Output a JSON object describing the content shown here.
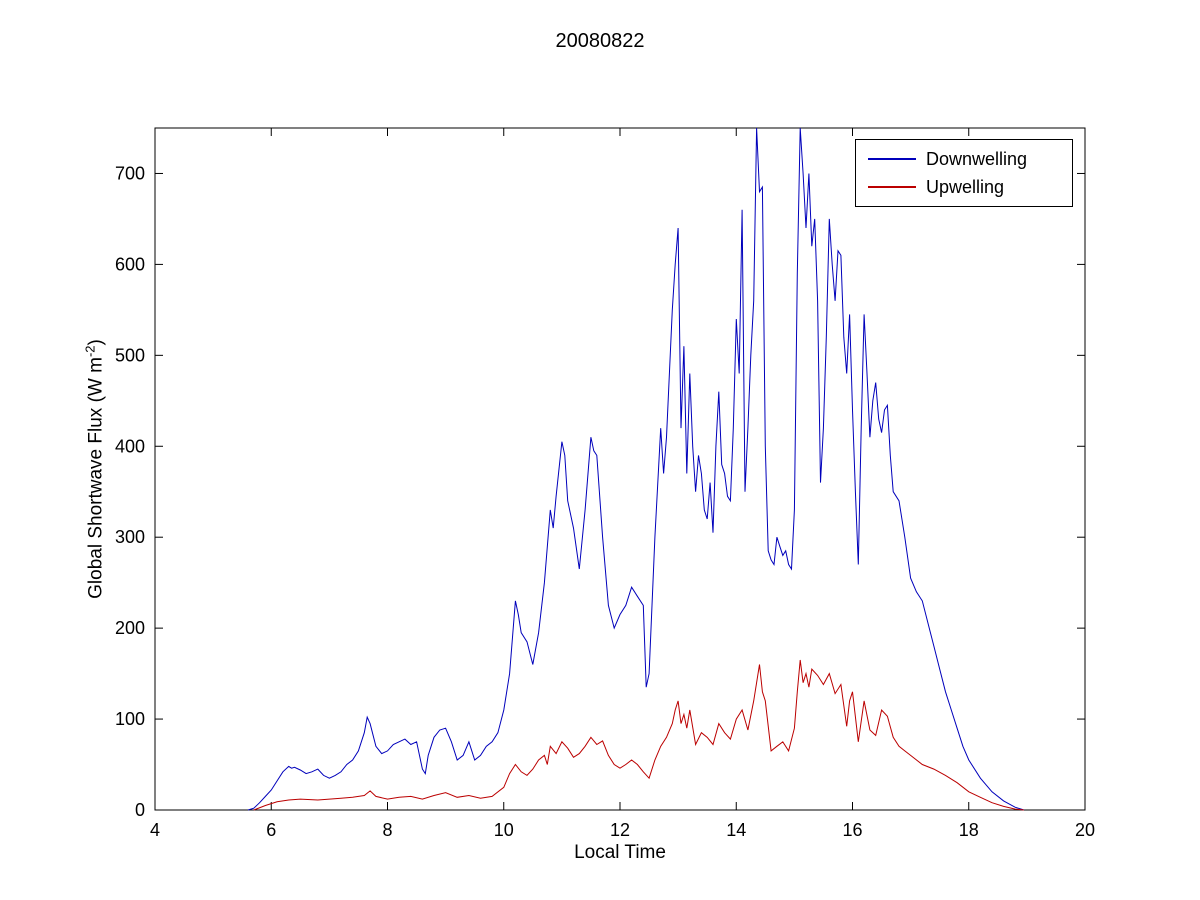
{
  "chart_data": {
    "type": "line",
    "title": "20080822",
    "xlabel": "Local Time",
    "ylabel": {
      "text": "Global Shortwave Flux (W m",
      "sup": "-2",
      "end": ")"
    },
    "xlim": [
      4,
      20
    ],
    "ylim": [
      0,
      750
    ],
    "xticks": [
      4,
      6,
      8,
      10,
      12,
      14,
      16,
      18,
      20
    ],
    "yticks": [
      0,
      100,
      200,
      300,
      400,
      500,
      600,
      700
    ],
    "grid": false,
    "legend_position": "top-right",
    "axis_color": "#000000",
    "background_color": "#ffffff",
    "series": [
      {
        "name": "Downwelling",
        "color": "#0000bb",
        "points": [
          [
            5.6,
            0
          ],
          [
            5.7,
            2
          ],
          [
            5.8,
            8
          ],
          [
            5.9,
            15
          ],
          [
            6.0,
            22
          ],
          [
            6.1,
            32
          ],
          [
            6.2,
            42
          ],
          [
            6.3,
            48
          ],
          [
            6.35,
            46
          ],
          [
            6.4,
            47
          ],
          [
            6.5,
            44
          ],
          [
            6.6,
            40
          ],
          [
            6.7,
            42
          ],
          [
            6.8,
            45
          ],
          [
            6.9,
            38
          ],
          [
            7.0,
            35
          ],
          [
            7.1,
            38
          ],
          [
            7.2,
            42
          ],
          [
            7.3,
            50
          ],
          [
            7.4,
            55
          ],
          [
            7.5,
            65
          ],
          [
            7.6,
            85
          ],
          [
            7.65,
            102
          ],
          [
            7.7,
            95
          ],
          [
            7.8,
            70
          ],
          [
            7.9,
            62
          ],
          [
            8.0,
            65
          ],
          [
            8.1,
            72
          ],
          [
            8.2,
            75
          ],
          [
            8.3,
            78
          ],
          [
            8.4,
            72
          ],
          [
            8.5,
            75
          ],
          [
            8.6,
            45
          ],
          [
            8.65,
            40
          ],
          [
            8.7,
            60
          ],
          [
            8.8,
            80
          ],
          [
            8.9,
            88
          ],
          [
            9.0,
            90
          ],
          [
            9.1,
            75
          ],
          [
            9.2,
            55
          ],
          [
            9.3,
            60
          ],
          [
            9.4,
            75
          ],
          [
            9.5,
            55
          ],
          [
            9.6,
            60
          ],
          [
            9.7,
            70
          ],
          [
            9.8,
            75
          ],
          [
            9.9,
            85
          ],
          [
            10.0,
            110
          ],
          [
            10.1,
            150
          ],
          [
            10.2,
            230
          ],
          [
            10.25,
            215
          ],
          [
            10.3,
            195
          ],
          [
            10.4,
            185
          ],
          [
            10.5,
            160
          ],
          [
            10.6,
            195
          ],
          [
            10.7,
            250
          ],
          [
            10.8,
            330
          ],
          [
            10.85,
            310
          ],
          [
            10.9,
            345
          ],
          [
            11.0,
            405
          ],
          [
            11.05,
            390
          ],
          [
            11.1,
            340
          ],
          [
            11.2,
            310
          ],
          [
            11.3,
            265
          ],
          [
            11.4,
            330
          ],
          [
            11.5,
            410
          ],
          [
            11.55,
            395
          ],
          [
            11.6,
            390
          ],
          [
            11.7,
            300
          ],
          [
            11.8,
            225
          ],
          [
            11.9,
            200
          ],
          [
            12.0,
            215
          ],
          [
            12.1,
            225
          ],
          [
            12.2,
            245
          ],
          [
            12.3,
            235
          ],
          [
            12.4,
            225
          ],
          [
            12.45,
            135
          ],
          [
            12.5,
            150
          ],
          [
            12.6,
            300
          ],
          [
            12.7,
            420
          ],
          [
            12.75,
            370
          ],
          [
            12.8,
            410
          ],
          [
            12.85,
            480
          ],
          [
            12.9,
            550
          ],
          [
            12.95,
            600
          ],
          [
            13.0,
            640
          ],
          [
            13.05,
            420
          ],
          [
            13.1,
            510
          ],
          [
            13.15,
            370
          ],
          [
            13.2,
            480
          ],
          [
            13.25,
            400
          ],
          [
            13.3,
            350
          ],
          [
            13.35,
            390
          ],
          [
            13.4,
            370
          ],
          [
            13.45,
            330
          ],
          [
            13.5,
            320
          ],
          [
            13.55,
            360
          ],
          [
            13.6,
            305
          ],
          [
            13.65,
            400
          ],
          [
            13.7,
            460
          ],
          [
            13.75,
            380
          ],
          [
            13.8,
            370
          ],
          [
            13.85,
            345
          ],
          [
            13.9,
            340
          ],
          [
            13.95,
            420
          ],
          [
            14.0,
            540
          ],
          [
            14.05,
            480
          ],
          [
            14.1,
            660
          ],
          [
            14.15,
            350
          ],
          [
            14.2,
            420
          ],
          [
            14.25,
            500
          ],
          [
            14.3,
            560
          ],
          [
            14.35,
            750
          ],
          [
            14.4,
            680
          ],
          [
            14.45,
            685
          ],
          [
            14.5,
            400
          ],
          [
            14.55,
            285
          ],
          [
            14.6,
            275
          ],
          [
            14.65,
            270
          ],
          [
            14.7,
            300
          ],
          [
            14.75,
            290
          ],
          [
            14.8,
            280
          ],
          [
            14.85,
            285
          ],
          [
            14.9,
            270
          ],
          [
            14.95,
            265
          ],
          [
            15.0,
            330
          ],
          [
            15.05,
            590
          ],
          [
            15.1,
            750
          ],
          [
            15.15,
            700
          ],
          [
            15.2,
            640
          ],
          [
            15.25,
            700
          ],
          [
            15.3,
            620
          ],
          [
            15.35,
            650
          ],
          [
            15.4,
            560
          ],
          [
            15.45,
            360
          ],
          [
            15.5,
            420
          ],
          [
            15.55,
            520
          ],
          [
            15.6,
            650
          ],
          [
            15.65,
            600
          ],
          [
            15.7,
            560
          ],
          [
            15.75,
            615
          ],
          [
            15.8,
            610
          ],
          [
            15.85,
            520
          ],
          [
            15.9,
            480
          ],
          [
            15.95,
            545
          ],
          [
            16.0,
            440
          ],
          [
            16.05,
            350
          ],
          [
            16.1,
            270
          ],
          [
            16.15,
            420
          ],
          [
            16.2,
            545
          ],
          [
            16.25,
            480
          ],
          [
            16.3,
            410
          ],
          [
            16.35,
            450
          ],
          [
            16.4,
            470
          ],
          [
            16.45,
            430
          ],
          [
            16.5,
            415
          ],
          [
            16.55,
            440
          ],
          [
            16.6,
            445
          ],
          [
            16.65,
            390
          ],
          [
            16.7,
            350
          ],
          [
            16.8,
            340
          ],
          [
            16.9,
            300
          ],
          [
            17.0,
            255
          ],
          [
            17.1,
            240
          ],
          [
            17.2,
            230
          ],
          [
            17.3,
            205
          ],
          [
            17.4,
            180
          ],
          [
            17.5,
            155
          ],
          [
            17.6,
            130
          ],
          [
            17.7,
            110
          ],
          [
            17.8,
            90
          ],
          [
            17.9,
            70
          ],
          [
            18.0,
            55
          ],
          [
            18.2,
            35
          ],
          [
            18.4,
            20
          ],
          [
            18.6,
            10
          ],
          [
            18.8,
            3
          ],
          [
            18.95,
            0
          ]
        ]
      },
      {
        "name": "Upwelling",
        "color": "#bb0000",
        "points": [
          [
            5.7,
            0
          ],
          [
            5.9,
            5
          ],
          [
            6.1,
            9
          ],
          [
            6.3,
            11
          ],
          [
            6.5,
            12
          ],
          [
            6.8,
            11
          ],
          [
            7.0,
            12
          ],
          [
            7.2,
            13
          ],
          [
            7.4,
            14
          ],
          [
            7.6,
            16
          ],
          [
            7.7,
            21
          ],
          [
            7.8,
            15
          ],
          [
            8.0,
            12
          ],
          [
            8.2,
            14
          ],
          [
            8.4,
            15
          ],
          [
            8.6,
            12
          ],
          [
            8.8,
            16
          ],
          [
            9.0,
            19
          ],
          [
            9.2,
            14
          ],
          [
            9.4,
            16
          ],
          [
            9.6,
            13
          ],
          [
            9.8,
            15
          ],
          [
            10.0,
            25
          ],
          [
            10.1,
            40
          ],
          [
            10.2,
            50
          ],
          [
            10.3,
            42
          ],
          [
            10.4,
            38
          ],
          [
            10.5,
            45
          ],
          [
            10.6,
            55
          ],
          [
            10.7,
            60
          ],
          [
            10.75,
            50
          ],
          [
            10.8,
            70
          ],
          [
            10.9,
            62
          ],
          [
            11.0,
            75
          ],
          [
            11.1,
            68
          ],
          [
            11.2,
            58
          ],
          [
            11.3,
            62
          ],
          [
            11.4,
            70
          ],
          [
            11.5,
            80
          ],
          [
            11.6,
            72
          ],
          [
            11.7,
            76
          ],
          [
            11.8,
            60
          ],
          [
            11.9,
            50
          ],
          [
            12.0,
            46
          ],
          [
            12.1,
            50
          ],
          [
            12.2,
            55
          ],
          [
            12.3,
            50
          ],
          [
            12.4,
            42
          ],
          [
            12.5,
            35
          ],
          [
            12.6,
            55
          ],
          [
            12.7,
            70
          ],
          [
            12.8,
            80
          ],
          [
            12.9,
            95
          ],
          [
            12.95,
            110
          ],
          [
            13.0,
            120
          ],
          [
            13.05,
            95
          ],
          [
            13.1,
            105
          ],
          [
            13.15,
            90
          ],
          [
            13.2,
            110
          ],
          [
            13.3,
            72
          ],
          [
            13.4,
            85
          ],
          [
            13.5,
            80
          ],
          [
            13.6,
            72
          ],
          [
            13.7,
            95
          ],
          [
            13.8,
            85
          ],
          [
            13.9,
            78
          ],
          [
            14.0,
            100
          ],
          [
            14.1,
            110
          ],
          [
            14.2,
            88
          ],
          [
            14.3,
            120
          ],
          [
            14.35,
            140
          ],
          [
            14.4,
            160
          ],
          [
            14.45,
            130
          ],
          [
            14.5,
            120
          ],
          [
            14.6,
            65
          ],
          [
            14.7,
            70
          ],
          [
            14.8,
            75
          ],
          [
            14.9,
            65
          ],
          [
            15.0,
            90
          ],
          [
            15.05,
            130
          ],
          [
            15.1,
            165
          ],
          [
            15.15,
            140
          ],
          [
            15.2,
            150
          ],
          [
            15.25,
            135
          ],
          [
            15.3,
            155
          ],
          [
            15.4,
            148
          ],
          [
            15.5,
            138
          ],
          [
            15.6,
            150
          ],
          [
            15.7,
            128
          ],
          [
            15.8,
            138
          ],
          [
            15.9,
            92
          ],
          [
            15.95,
            120
          ],
          [
            16.0,
            130
          ],
          [
            16.1,
            75
          ],
          [
            16.2,
            120
          ],
          [
            16.3,
            88
          ],
          [
            16.4,
            82
          ],
          [
            16.5,
            110
          ],
          [
            16.6,
            103
          ],
          [
            16.7,
            80
          ],
          [
            16.8,
            70
          ],
          [
            16.9,
            65
          ],
          [
            17.0,
            60
          ],
          [
            17.2,
            50
          ],
          [
            17.4,
            45
          ],
          [
            17.6,
            38
          ],
          [
            17.8,
            30
          ],
          [
            18.0,
            20
          ],
          [
            18.2,
            14
          ],
          [
            18.4,
            8
          ],
          [
            18.6,
            4
          ],
          [
            18.8,
            1
          ],
          [
            18.95,
            0
          ]
        ]
      }
    ]
  }
}
